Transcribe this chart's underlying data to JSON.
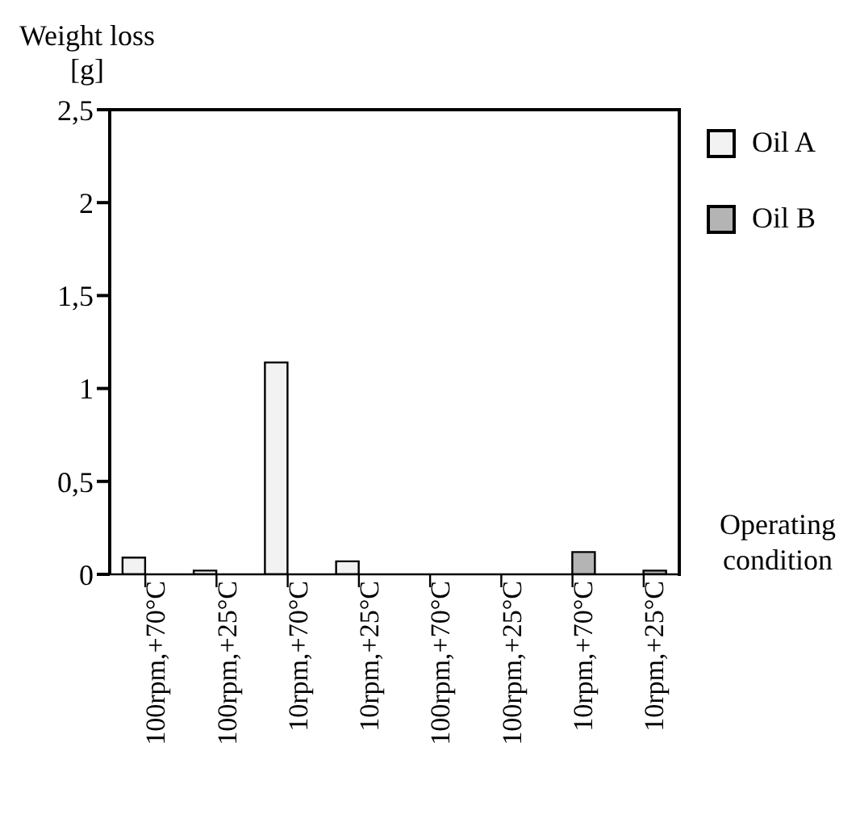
{
  "chart_data": {
    "type": "bar",
    "ylabel": "Weight loss\n[g]",
    "xlabel": "Operating\ncondition",
    "categories": [
      "100rpm,+70°C",
      "100rpm,+25°C",
      "10rpm,+70°C",
      "10rpm,+25°C",
      "100rpm,+70°C",
      "100rpm,+25°C",
      "10rpm,+70°C",
      "10rpm,+25°C"
    ],
    "series": [
      {
        "name": "Oil A",
        "color": "#f2f2f2",
        "values": [
          0.09,
          0.02,
          1.14,
          0.07,
          null,
          null,
          null,
          null
        ]
      },
      {
        "name": "Oil B",
        "color": "#b4b4b4",
        "values": [
          null,
          null,
          null,
          null,
          null,
          null,
          0.12,
          0.02
        ]
      }
    ],
    "ylim": [
      0,
      2.5
    ],
    "yticks": [
      0,
      {
        "value": 0.5,
        "label": "0,5"
      },
      1,
      {
        "value": 1.5,
        "label": "1,5"
      },
      2,
      {
        "value": 2.5,
        "label": "2,5"
      }
    ],
    "grid": false,
    "legend": "top right"
  }
}
